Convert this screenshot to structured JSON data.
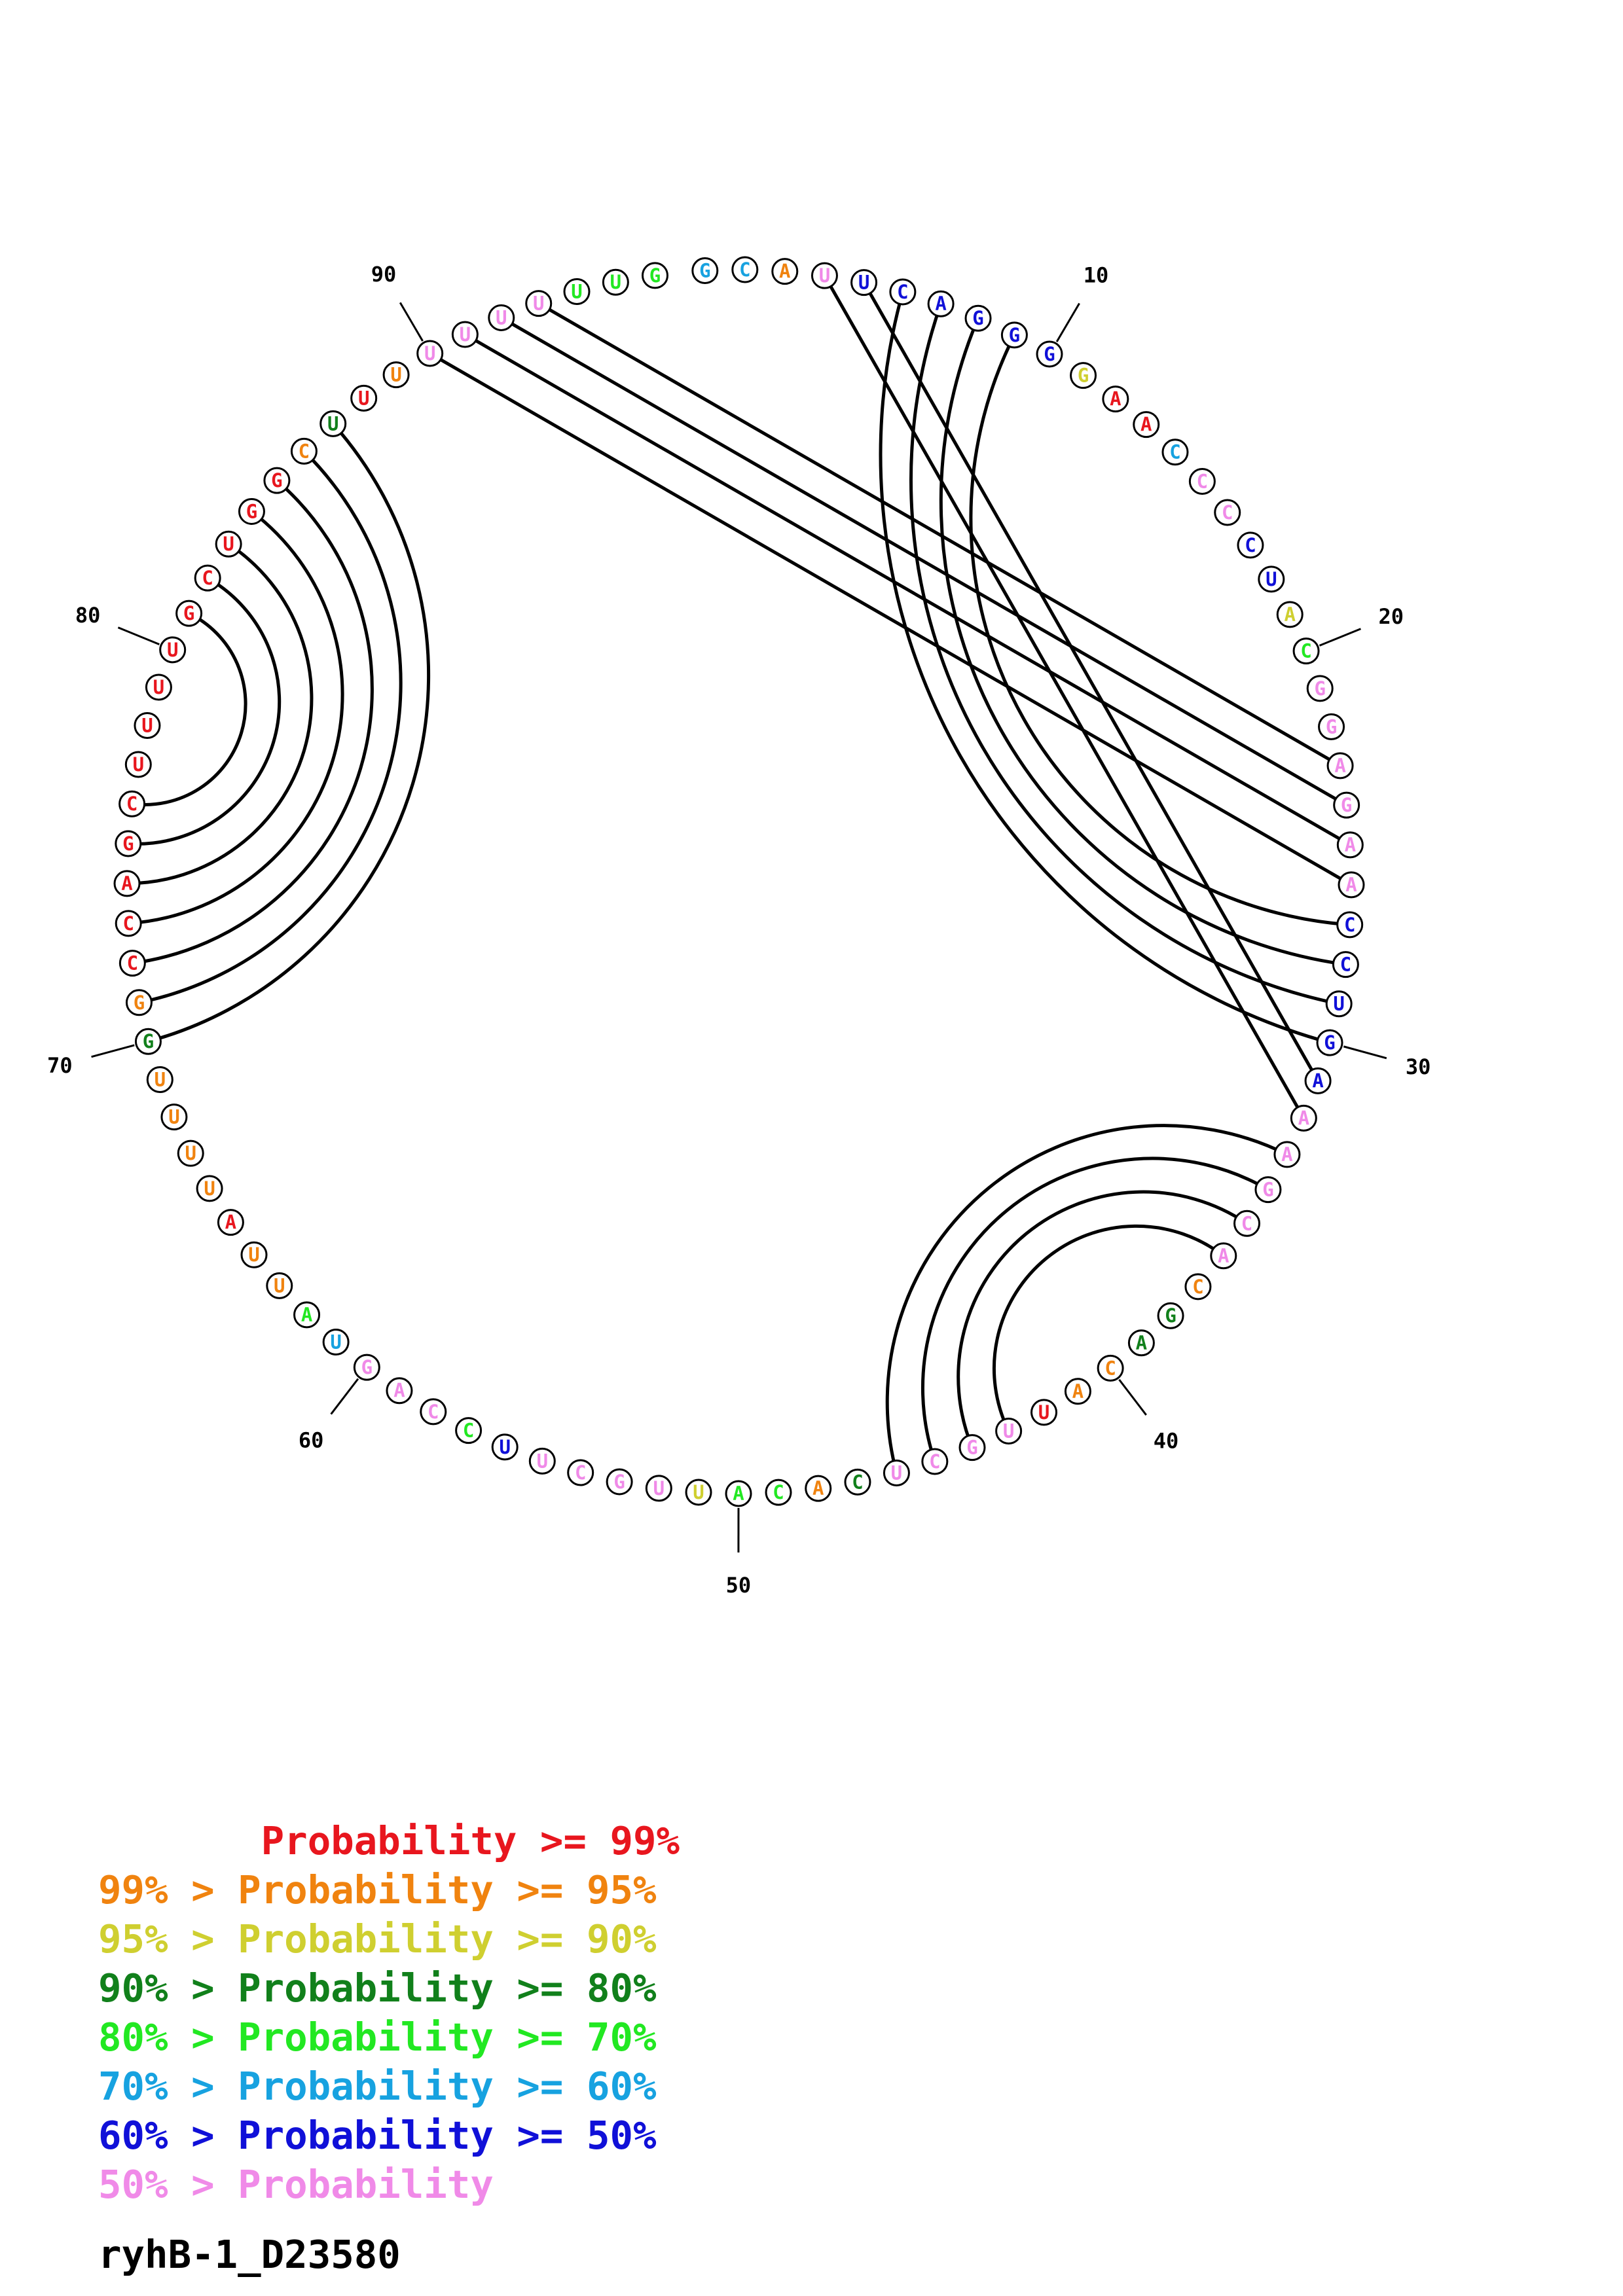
{
  "sequence_name": "ryhB-1_D23580",
  "colors": {
    "p99": "#e8161e",
    "p95": "#f0830f",
    "p90": "#cfcf30",
    "p80": "#11801b",
    "p70": "#22e822",
    "p60": "#17a2e0",
    "p50": "#1010d8",
    "plow": "#f08ae8"
  },
  "nucleotides": [
    {
      "n": 1,
      "base": "G",
      "c": "p60"
    },
    {
      "n": 2,
      "base": "C",
      "c": "p60"
    },
    {
      "n": 3,
      "base": "A",
      "c": "p95"
    },
    {
      "n": 4,
      "base": "U",
      "c": "plow"
    },
    {
      "n": 5,
      "base": "U",
      "c": "p50"
    },
    {
      "n": 6,
      "base": "C",
      "c": "p50"
    },
    {
      "n": 7,
      "base": "A",
      "c": "p50"
    },
    {
      "n": 8,
      "base": "G",
      "c": "p50"
    },
    {
      "n": 9,
      "base": "G",
      "c": "p50"
    },
    {
      "n": 10,
      "base": "G",
      "c": "p50"
    },
    {
      "n": 11,
      "base": "G",
      "c": "p90"
    },
    {
      "n": 12,
      "base": "A",
      "c": "p99"
    },
    {
      "n": 13,
      "base": "A",
      "c": "p99"
    },
    {
      "n": 14,
      "base": "C",
      "c": "p60"
    },
    {
      "n": 15,
      "base": "C",
      "c": "plow"
    },
    {
      "n": 16,
      "base": "C",
      "c": "plow"
    },
    {
      "n": 17,
      "base": "C",
      "c": "p50"
    },
    {
      "n": 18,
      "base": "U",
      "c": "p50"
    },
    {
      "n": 19,
      "base": "A",
      "c": "p90"
    },
    {
      "n": 20,
      "base": "C",
      "c": "p70"
    },
    {
      "n": 21,
      "base": "G",
      "c": "plow"
    },
    {
      "n": 22,
      "base": "G",
      "c": "plow"
    },
    {
      "n": 23,
      "base": "A",
      "c": "plow"
    },
    {
      "n": 24,
      "base": "G",
      "c": "plow"
    },
    {
      "n": 25,
      "base": "A",
      "c": "plow"
    },
    {
      "n": 26,
      "base": "A",
      "c": "plow"
    },
    {
      "n": 27,
      "base": "C",
      "c": "p50"
    },
    {
      "n": 28,
      "base": "C",
      "c": "p50"
    },
    {
      "n": 29,
      "base": "U",
      "c": "p50"
    },
    {
      "n": 30,
      "base": "G",
      "c": "p50"
    },
    {
      "n": 31,
      "base": "A",
      "c": "p50"
    },
    {
      "n": 32,
      "base": "A",
      "c": "plow"
    },
    {
      "n": 33,
      "base": "A",
      "c": "plow"
    },
    {
      "n": 34,
      "base": "G",
      "c": "plow"
    },
    {
      "n": 35,
      "base": "C",
      "c": "plow"
    },
    {
      "n": 36,
      "base": "A",
      "c": "plow"
    },
    {
      "n": 37,
      "base": "C",
      "c": "p95"
    },
    {
      "n": 38,
      "base": "G",
      "c": "p80"
    },
    {
      "n": 39,
      "base": "A",
      "c": "p80"
    },
    {
      "n": 40,
      "base": "C",
      "c": "p95"
    },
    {
      "n": 41,
      "base": "A",
      "c": "p95"
    },
    {
      "n": 42,
      "base": "U",
      "c": "p99"
    },
    {
      "n": 43,
      "base": "U",
      "c": "plow"
    },
    {
      "n": 44,
      "base": "G",
      "c": "plow"
    },
    {
      "n": 45,
      "base": "C",
      "c": "plow"
    },
    {
      "n": 46,
      "base": "U",
      "c": "plow"
    },
    {
      "n": 47,
      "base": "C",
      "c": "p80"
    },
    {
      "n": 48,
      "base": "A",
      "c": "p95"
    },
    {
      "n": 49,
      "base": "C",
      "c": "p70"
    },
    {
      "n": 50,
      "base": "A",
      "c": "p70"
    },
    {
      "n": 51,
      "base": "U",
      "c": "p90"
    },
    {
      "n": 52,
      "base": "U",
      "c": "plow"
    },
    {
      "n": 53,
      "base": "G",
      "c": "plow"
    },
    {
      "n": 54,
      "base": "C",
      "c": "plow"
    },
    {
      "n": 55,
      "base": "U",
      "c": "plow"
    },
    {
      "n": 56,
      "base": "U",
      "c": "p50"
    },
    {
      "n": 57,
      "base": "C",
      "c": "p70"
    },
    {
      "n": 58,
      "base": "C",
      "c": "plow"
    },
    {
      "n": 59,
      "base": "A",
      "c": "plow"
    },
    {
      "n": 60,
      "base": "G",
      "c": "plow"
    },
    {
      "n": 61,
      "base": "U",
      "c": "p60"
    },
    {
      "n": 62,
      "base": "A",
      "c": "p70"
    },
    {
      "n": 63,
      "base": "U",
      "c": "p95"
    },
    {
      "n": 64,
      "base": "U",
      "c": "p95"
    },
    {
      "n": 65,
      "base": "A",
      "c": "p99"
    },
    {
      "n": 66,
      "base": "U",
      "c": "p95"
    },
    {
      "n": 67,
      "base": "U",
      "c": "p95"
    },
    {
      "n": 68,
      "base": "U",
      "c": "p95"
    },
    {
      "n": 69,
      "base": "U",
      "c": "p95"
    },
    {
      "n": 70,
      "base": "G",
      "c": "p80"
    },
    {
      "n": 71,
      "base": "G",
      "c": "p95"
    },
    {
      "n": 72,
      "base": "C",
      "c": "p99"
    },
    {
      "n": 73,
      "base": "C",
      "c": "p99"
    },
    {
      "n": 74,
      "base": "A",
      "c": "p99"
    },
    {
      "n": 75,
      "base": "G",
      "c": "p99"
    },
    {
      "n": 76,
      "base": "C",
      "c": "p99"
    },
    {
      "n": 77,
      "base": "U",
      "c": "p99"
    },
    {
      "n": 78,
      "base": "U",
      "c": "p99"
    },
    {
      "n": 79,
      "base": "U",
      "c": "p99"
    },
    {
      "n": 80,
      "base": "U",
      "c": "p99"
    },
    {
      "n": 81,
      "base": "G",
      "c": "p99"
    },
    {
      "n": 82,
      "base": "C",
      "c": "p99"
    },
    {
      "n": 83,
      "base": "U",
      "c": "p99"
    },
    {
      "n": 84,
      "base": "G",
      "c": "p99"
    },
    {
      "n": 85,
      "base": "G",
      "c": "p99"
    },
    {
      "n": 86,
      "base": "C",
      "c": "p95"
    },
    {
      "n": 87,
      "base": "U",
      "c": "p80"
    },
    {
      "n": 88,
      "base": "U",
      "c": "p99"
    },
    {
      "n": 89,
      "base": "U",
      "c": "p95"
    },
    {
      "n": 90,
      "base": "U",
      "c": "plow"
    },
    {
      "n": 91,
      "base": "U",
      "c": "plow"
    },
    {
      "n": 92,
      "base": "U",
      "c": "plow"
    },
    {
      "n": 93,
      "base": "U",
      "c": "plow"
    },
    {
      "n": 94,
      "base": "U",
      "c": "p70"
    },
    {
      "n": 95,
      "base": "U",
      "c": "p70"
    },
    {
      "n": 96,
      "base": "G",
      "c": "p70"
    }
  ],
  "pairs": [
    [
      4,
      32
    ],
    [
      5,
      31
    ],
    [
      6,
      30
    ],
    [
      7,
      29
    ],
    [
      8,
      28
    ],
    [
      9,
      27
    ],
    [
      33,
      46
    ],
    [
      34,
      45
    ],
    [
      35,
      44
    ],
    [
      36,
      43
    ],
    [
      70,
      87
    ],
    [
      71,
      86
    ],
    [
      72,
      85
    ],
    [
      73,
      84
    ],
    [
      74,
      83
    ],
    [
      75,
      82
    ],
    [
      76,
      81
    ],
    [
      90,
      26
    ],
    [
      91,
      25
    ],
    [
      92,
      24
    ],
    [
      93,
      23
    ]
  ],
  "position_labels": [
    {
      "n": 10,
      "text": "10"
    },
    {
      "n": 20,
      "text": "20"
    },
    {
      "n": 30,
      "text": "30"
    },
    {
      "n": 40,
      "text": "40"
    },
    {
      "n": 50,
      "text": "50"
    },
    {
      "n": 60,
      "text": "60"
    },
    {
      "n": 70,
      "text": "70"
    },
    {
      "n": 80,
      "text": "80"
    },
    {
      "n": 90,
      "text": "90"
    }
  ],
  "legend": [
    {
      "text": "       Probability >= 99%",
      "c": "p99"
    },
    {
      "text": "99% > Probability >= 95%",
      "c": "p95"
    },
    {
      "text": "95% > Probability >= 90%",
      "c": "p90"
    },
    {
      "text": "90% > Probability >= 80%",
      "c": "p80"
    },
    {
      "text": "80% > Probability >= 70%",
      "c": "p70"
    },
    {
      "text": "70% > Probability >= 60%",
      "c": "p60"
    },
    {
      "text": "60% > Probability >= 50%",
      "c": "p50"
    },
    {
      "text": "50% > Probability",
      "c": "plow"
    }
  ]
}
